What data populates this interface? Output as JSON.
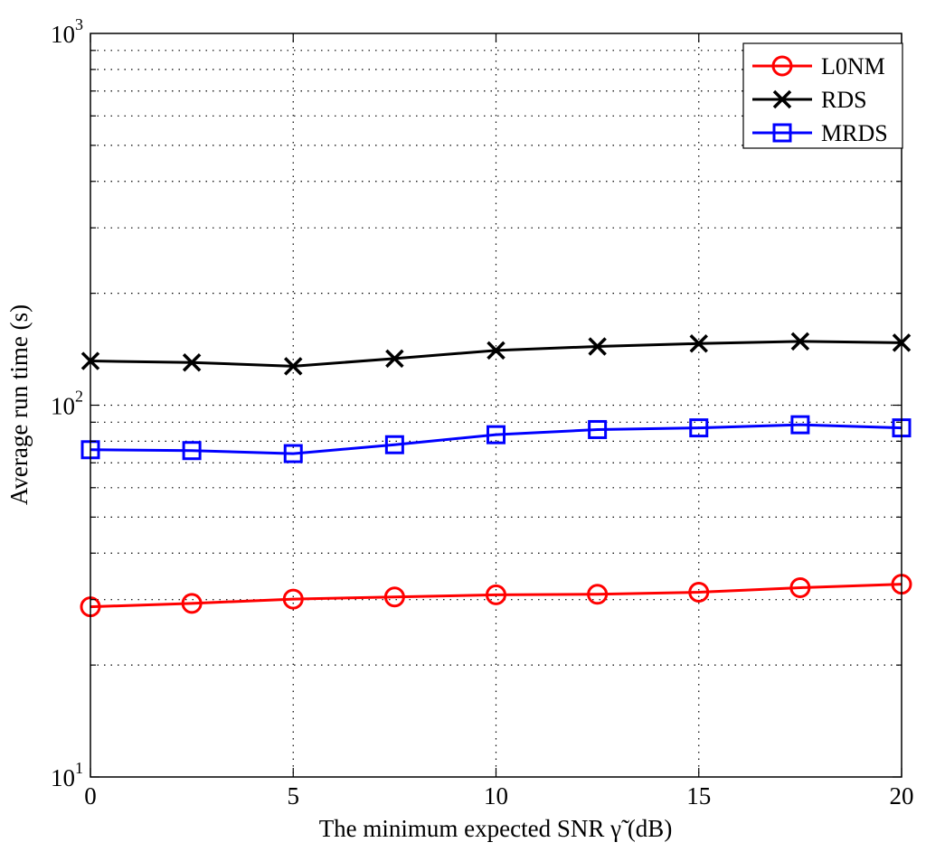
{
  "chart_data": {
    "type": "line",
    "title": "",
    "xlabel": "The minimum expected SNR γ̃ (dB)",
    "ylabel": "Average run time (s)",
    "xlim": [
      0,
      20
    ],
    "ylim": [
      10,
      1000
    ],
    "yscale": "log",
    "grid": true,
    "legend_placement": "top-right",
    "x_ticks": [
      "0",
      "5",
      "10",
      "15",
      "20"
    ],
    "y_ticks": [
      {
        "base": "10",
        "exp": "1"
      },
      {
        "base": "10",
        "exp": "2"
      },
      {
        "base": "10",
        "exp": "3"
      }
    ],
    "x": [
      0,
      2.5,
      5,
      7.5,
      10,
      12.5,
      15,
      17.5,
      20
    ],
    "series": [
      {
        "name": "L0NM",
        "color": "#ff0000",
        "marker": "circle",
        "values": [
          28.7,
          29.3,
          30.1,
          30.5,
          30.9,
          31.0,
          31.4,
          32.3,
          33.0
        ]
      },
      {
        "name": "RDS",
        "color": "#000000",
        "marker": "x",
        "values": [
          131.5,
          130.3,
          127.3,
          133.5,
          140.4,
          143.9,
          146.5,
          148.5,
          147.2
        ]
      },
      {
        "name": "MRDS",
        "color": "#0000ff",
        "marker": "square",
        "values": [
          75.9,
          75.5,
          74.1,
          78.3,
          83.3,
          86.0,
          86.9,
          88.6,
          86.9
        ]
      }
    ]
  }
}
